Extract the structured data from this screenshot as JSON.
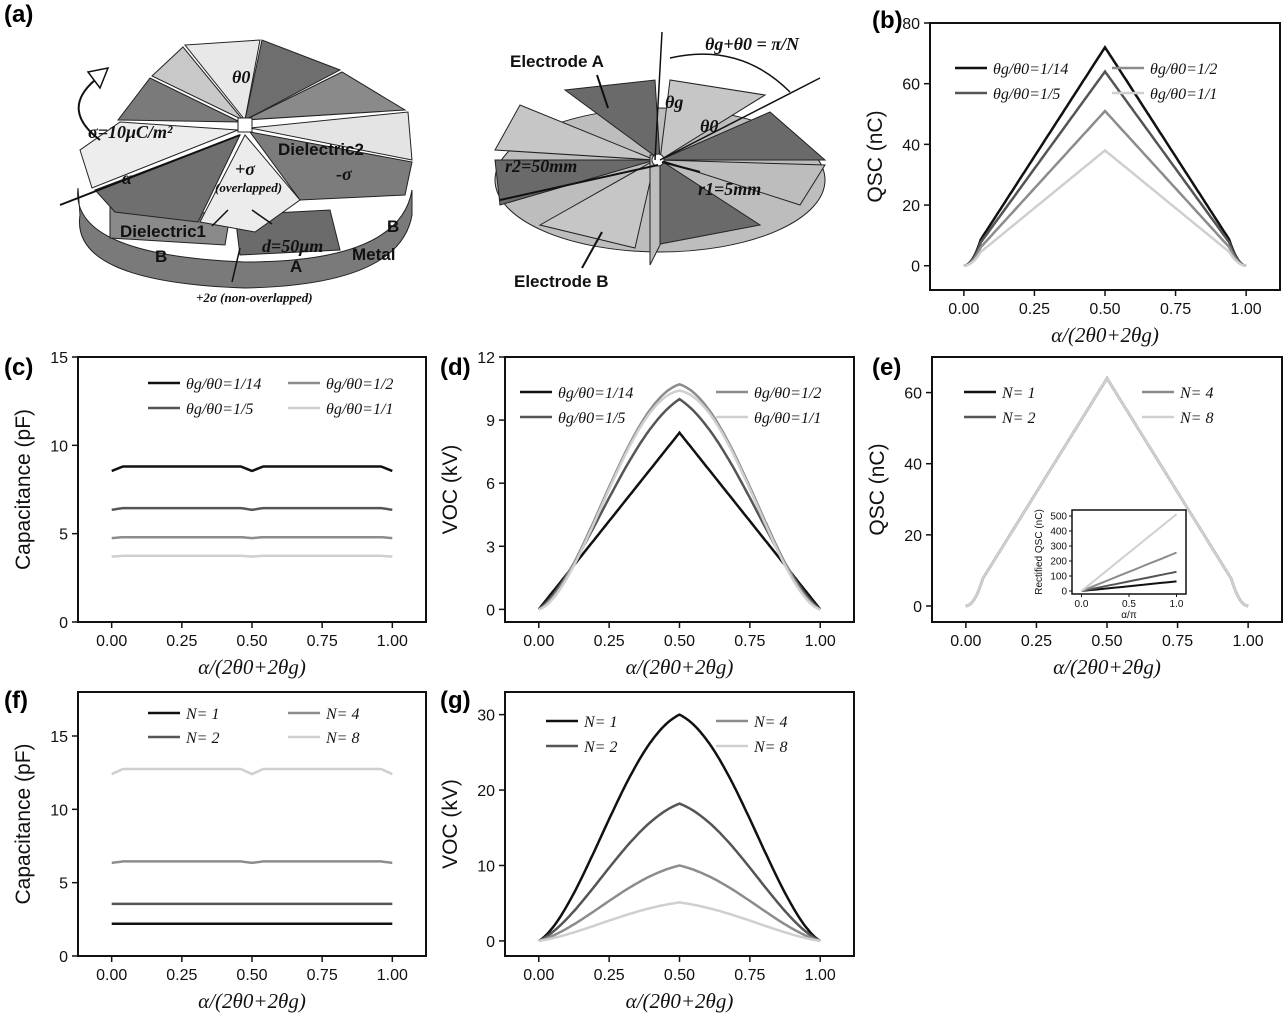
{
  "panel_labels": {
    "a": "(a)",
    "b": "(b)",
    "c": "(c)",
    "d": "(d)",
    "e": "(e)",
    "f": "(f)",
    "g": "(g)"
  },
  "diagram_left": {
    "theta0": "θ0",
    "sigma": "σ=10μC/m²",
    "dielectric2": "Dielectric2",
    "dielectric1": "Dielectric1",
    "alpha": "α",
    "plus_sigma": "+σ",
    "overlapped": "(overlapped)",
    "minus_sigma": "-σ",
    "d": "d=50μm",
    "metal": "Metal",
    "a_label": "A",
    "b_label_1": "B",
    "b_label_2": "B",
    "plus2sigma": "+2σ (non-overlapped)"
  },
  "diagram_right": {
    "electrode_a": "Electrode A",
    "electrode_b": "Electrode B",
    "formula": "θg+θ0 = π/N",
    "theta_g": "θg",
    "theta0": "θ0",
    "r2": "r2=50mm",
    "r1": "r1=5mm"
  },
  "colors": {
    "s1": "#111111",
    "s2": "#555555",
    "s3": "#8c8c8c",
    "s4": "#cfcfcf"
  },
  "chart_data": [
    {
      "id": "b",
      "type": "line",
      "xlabel": "α/(2θ0+2θg)",
      "ylabel": "QSC (nC)",
      "xlim": [
        -0.12,
        1.12
      ],
      "ylim": [
        -8,
        80
      ],
      "xticks": [
        0.0,
        0.25,
        0.5,
        0.75,
        1.0
      ],
      "xtick_labels": [
        "0.00",
        "0.25",
        "0.50",
        "0.75",
        "1.00"
      ],
      "yticks": [
        0,
        20,
        40,
        60,
        80
      ],
      "ytick_labels": [
        "0",
        "20",
        "40",
        "60",
        "80"
      ],
      "shape": "tent",
      "legend": [
        "θg/θ0=1/14",
        "θg/θ0=1/5",
        "θg/θ0=1/2",
        "θg/θ0=1/1"
      ],
      "series": [
        {
          "peak": 72
        },
        {
          "peak": 64
        },
        {
          "peak": 51
        },
        {
          "peak": 38
        }
      ]
    },
    {
      "id": "c",
      "type": "line",
      "xlabel": "α/(2θ0+2θg)",
      "ylabel": "Capacitance (pF)",
      "xlim": [
        -0.12,
        1.12
      ],
      "ylim": [
        0,
        15
      ],
      "xticks": [
        0.0,
        0.25,
        0.5,
        0.75,
        1.0
      ],
      "xtick_labels": [
        "0.00",
        "0.25",
        "0.50",
        "0.75",
        "1.00"
      ],
      "yticks": [
        0,
        5,
        10,
        15
      ],
      "ytick_labels": [
        "0",
        "5",
        "10",
        "15"
      ],
      "shape": "flat",
      "legend": [
        "θg/θ0=1/14",
        "θg/θ0=1/5",
        "θg/θ0=1/2",
        "θg/θ0=1/1"
      ],
      "series": [
        {
          "level": 8.8,
          "edge": 8.55
        },
        {
          "level": 6.45,
          "edge": 6.35
        },
        {
          "level": 4.8,
          "edge": 4.75
        },
        {
          "level": 3.75,
          "edge": 3.7
        }
      ]
    },
    {
      "id": "d",
      "type": "line",
      "xlabel": "α/(2θ0+2θg)",
      "ylabel": "VOC (kV)",
      "xlim": [
        -0.12,
        1.12
      ],
      "ylim": [
        -0.6,
        12
      ],
      "xticks": [
        0.0,
        0.25,
        0.5,
        0.75,
        1.0
      ],
      "xtick_labels": [
        "0.00",
        "0.25",
        "0.50",
        "0.75",
        "1.00"
      ],
      "yticks": [
        0,
        3,
        6,
        9,
        12
      ],
      "ytick_labels": [
        "0",
        "3",
        "6",
        "9",
        "12"
      ],
      "shape": "bell",
      "legend": [
        "θg/θ0=1/14",
        "θg/θ0=1/5",
        "θg/θ0=1/2",
        "θg/θ0=1/1"
      ],
      "series": [
        {
          "peak": 8.4,
          "sharp": 0.0
        },
        {
          "peak": 10.0,
          "sharp": 0.55
        },
        {
          "peak": 10.7,
          "sharp": 0.8
        },
        {
          "peak": 10.4,
          "sharp": 0.9
        }
      ]
    },
    {
      "id": "e",
      "type": "line",
      "xlabel": "α/(2θ0+2θg)",
      "ylabel": "QSC (nC)",
      "xlim": [
        -0.12,
        1.12
      ],
      "ylim": [
        -4.5,
        70
      ],
      "xticks": [
        0.0,
        0.25,
        0.5,
        0.75,
        1.0
      ],
      "xtick_labels": [
        "0.00",
        "0.25",
        "0.50",
        "0.75",
        "1.00"
      ],
      "yticks": [
        0,
        20,
        40,
        60
      ],
      "ytick_labels": [
        "0",
        "20",
        "40",
        "60"
      ],
      "shape": "tent",
      "legend": [
        "N= 1",
        "N= 2",
        "N= 4",
        "N= 8"
      ],
      "series": [
        {
          "peak": 64
        },
        {
          "peak": 64
        },
        {
          "peak": 64
        },
        {
          "peak": 64
        }
      ],
      "inset": {
        "xlabel": "α/π",
        "ylabel": "Rectified QSC (nC)",
        "xlim": [
          -0.1,
          1.1
        ],
        "ylim": [
          -20,
          540
        ],
        "xticks": [
          0.0,
          0.5,
          1.0
        ],
        "xtick_labels": [
          "0.0",
          "0.5",
          "1.0"
        ],
        "yticks": [
          0,
          100,
          200,
          300,
          400,
          500
        ],
        "ytick_labels": [
          "0",
          "100",
          "200",
          "300",
          "400",
          "500"
        ],
        "series": [
          {
            "end": 64
          },
          {
            "end": 128
          },
          {
            "end": 256
          },
          {
            "end": 512
          }
        ]
      }
    },
    {
      "id": "f",
      "type": "line",
      "xlabel": "α/(2θ0+2θg)",
      "ylabel": "Capacitance (pF)",
      "xlim": [
        -0.12,
        1.12
      ],
      "ylim": [
        0,
        18
      ],
      "xticks": [
        0.0,
        0.25,
        0.5,
        0.75,
        1.0
      ],
      "xtick_labels": [
        "0.00",
        "0.25",
        "0.50",
        "0.75",
        "1.00"
      ],
      "yticks": [
        0,
        5,
        10,
        15
      ],
      "ytick_labels": [
        "0",
        "5",
        "10",
        "15"
      ],
      "shape": "flat",
      "legend": [
        "N= 1",
        "N= 2",
        "N= 4",
        "N= 8"
      ],
      "series": [
        {
          "level": 2.2,
          "edge": 2.2
        },
        {
          "level": 3.55,
          "edge": 3.55
        },
        {
          "level": 6.45,
          "edge": 6.35
        },
        {
          "level": 12.75,
          "edge": 12.4
        }
      ]
    },
    {
      "id": "g",
      "type": "line",
      "xlabel": "α/(2θ0+2θg)",
      "ylabel": "VOC (kV)",
      "xlim": [
        -0.12,
        1.12
      ],
      "ylim": [
        -2,
        33
      ],
      "xticks": [
        0.0,
        0.25,
        0.5,
        0.75,
        1.0
      ],
      "xtick_labels": [
        "0.00",
        "0.25",
        "0.50",
        "0.75",
        "1.00"
      ],
      "yticks": [
        0,
        10,
        20,
        30
      ],
      "ytick_labels": [
        "0",
        "10",
        "20",
        "30"
      ],
      "shape": "bell",
      "legend": [
        "N= 1",
        "N= 2",
        "N= 4",
        "N= 8"
      ],
      "series": [
        {
          "peak": 30,
          "sharp": 0.7
        },
        {
          "peak": 18.2,
          "sharp": 0.6
        },
        {
          "peak": 10,
          "sharp": 0.55
        },
        {
          "peak": 5.1,
          "sharp": 0.5
        }
      ]
    }
  ]
}
